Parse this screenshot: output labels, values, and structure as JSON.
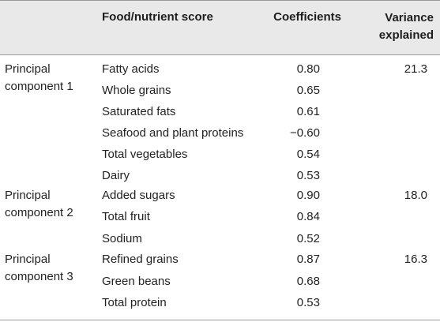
{
  "table": {
    "headers": {
      "group": "",
      "food": "Food/nutrient score",
      "coefficients": "Coefficients",
      "variance_line1": "Variance",
      "variance_line2": "explained"
    },
    "groups": [
      {
        "label_line1": "Principal",
        "label_line2": "component 1",
        "variance": "21.3",
        "rows": [
          {
            "food": "Fatty acids",
            "coef": "0.80"
          },
          {
            "food": "Whole grains",
            "coef": "0.65"
          },
          {
            "food": "Saturated fats",
            "coef": "0.61"
          },
          {
            "food": "Seafood and plant proteins",
            "coef": "−0.60"
          },
          {
            "food": "Total vegetables",
            "coef": "0.54"
          },
          {
            "food": "Dairy",
            "coef": "0.53"
          }
        ]
      },
      {
        "label_line1": "Principal",
        "label_line2": "component 2",
        "variance": "18.0",
        "rows": [
          {
            "food": "Added sugars",
            "coef": "0.90"
          },
          {
            "food": "Total fruit",
            "coef": "0.84"
          },
          {
            "food": "Sodium",
            "coef": "0.52"
          }
        ]
      },
      {
        "label_line1": "Principal",
        "label_line2": "component 3",
        "variance": "16.3",
        "rows": [
          {
            "food": "Refined grains",
            "coef": "0.87"
          },
          {
            "food": "Green beans",
            "coef": "0.68"
          },
          {
            "food": "Total protein",
            "coef": "0.53"
          }
        ]
      }
    ]
  }
}
